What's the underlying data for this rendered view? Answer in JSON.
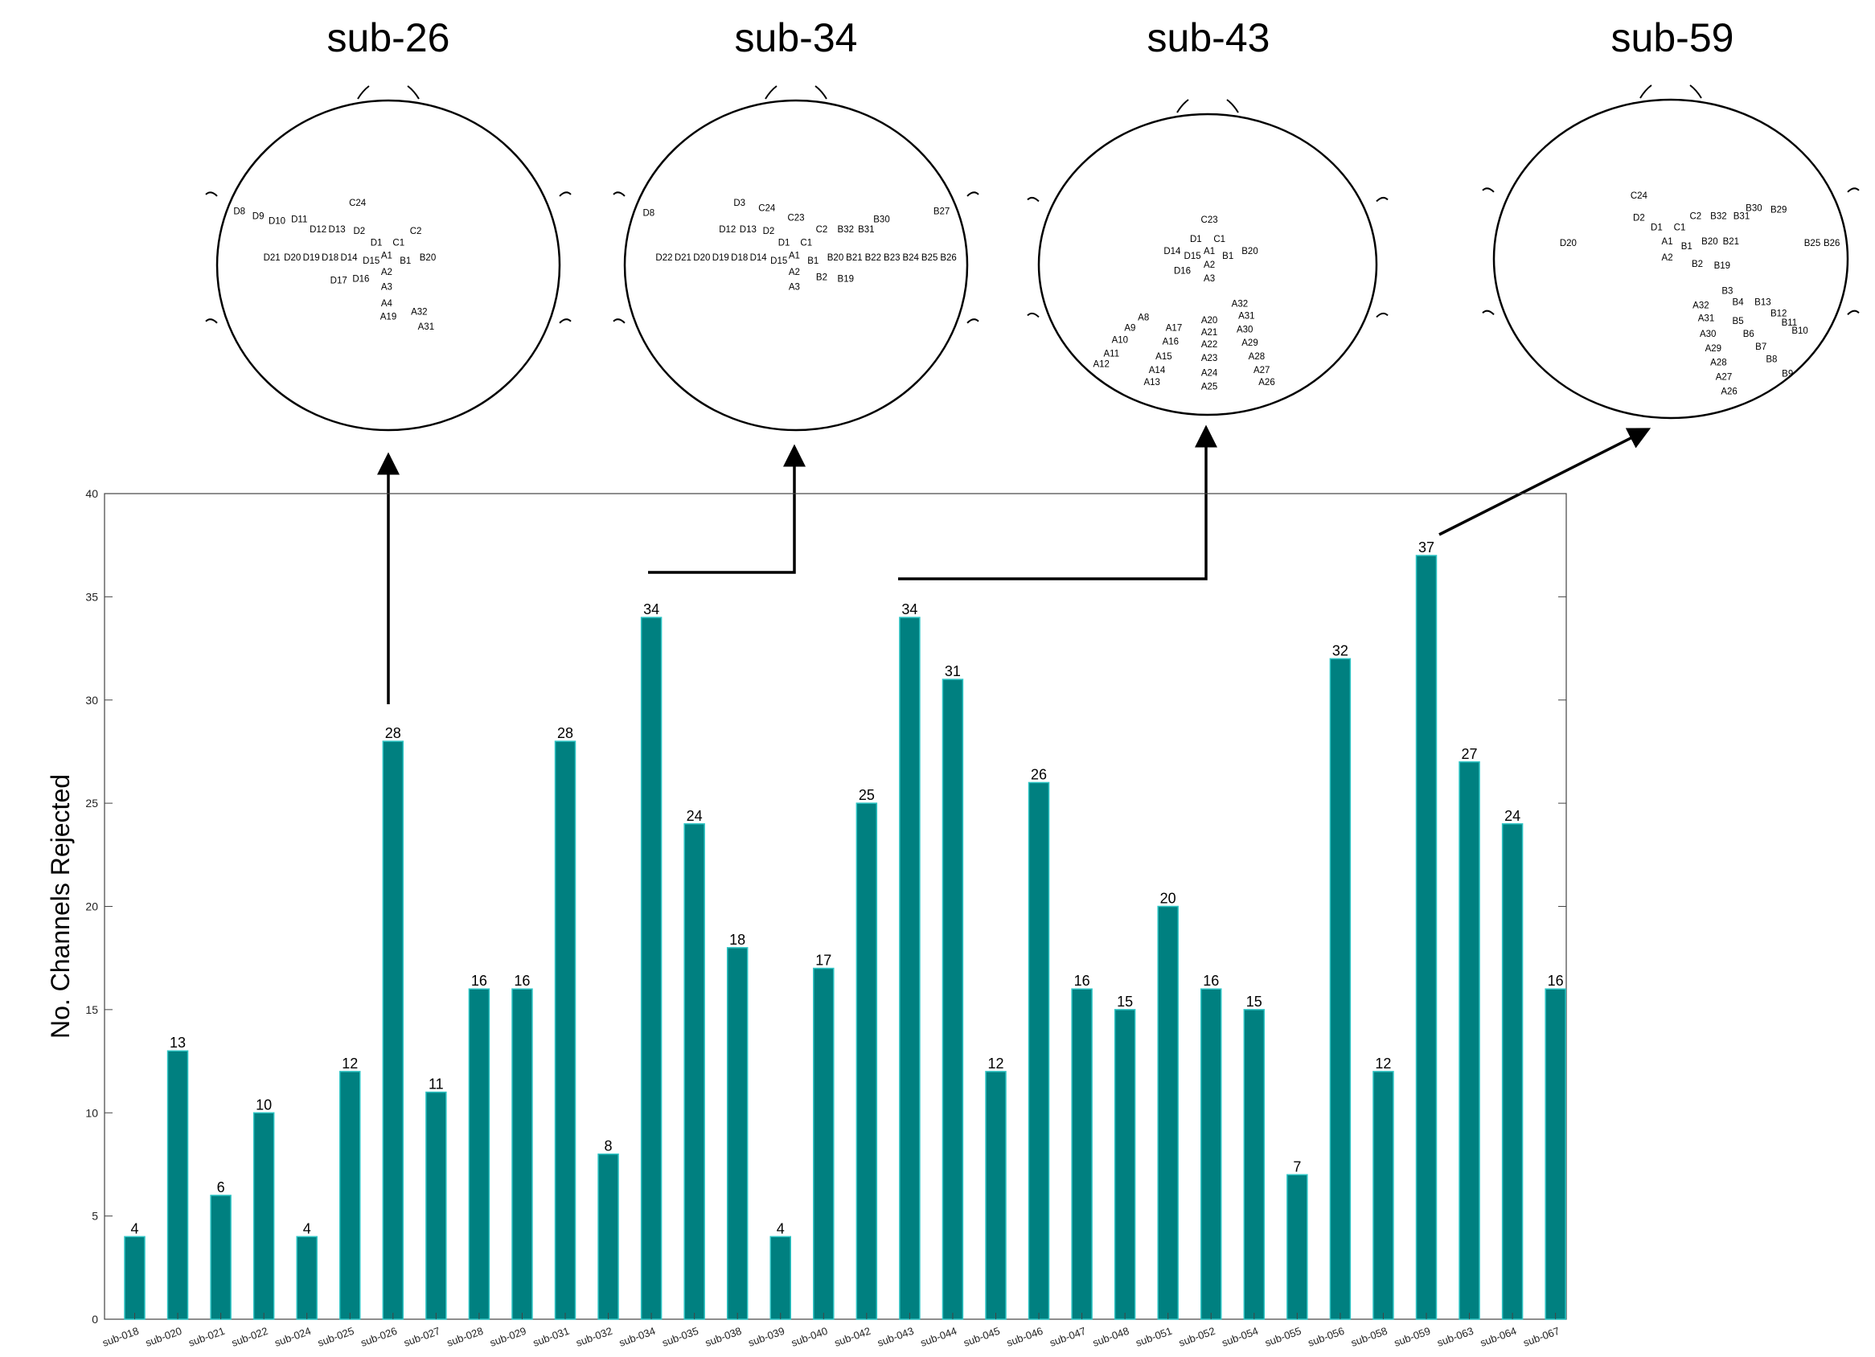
{
  "chart_data": {
    "type": "bar",
    "ylabel": "No. Channels Rejected",
    "xlabel": "",
    "ylim": [
      0,
      40
    ],
    "yticks": [
      0,
      5,
      10,
      15,
      20,
      25,
      30,
      35,
      40
    ],
    "grid": false,
    "categories": [
      "sub-018",
      "sub-020",
      "sub-021",
      "sub-022",
      "sub-024",
      "sub-025",
      "sub-026",
      "sub-027",
      "sub-028",
      "sub-029",
      "sub-031",
      "sub-032",
      "sub-034",
      "sub-035",
      "sub-038",
      "sub-039",
      "sub-040",
      "sub-042",
      "sub-043",
      "sub-044",
      "sub-045",
      "sub-046",
      "sub-047",
      "sub-048",
      "sub-051",
      "sub-052",
      "sub-054",
      "sub-055",
      "sub-056",
      "sub-058",
      "sub-059",
      "sub-063",
      "sub-064",
      "sub-067"
    ],
    "values": [
      4,
      13,
      6,
      10,
      4,
      12,
      28,
      11,
      16,
      16,
      28,
      8,
      34,
      24,
      18,
      4,
      17,
      25,
      34,
      31,
      12,
      26,
      16,
      15,
      20,
      16,
      15,
      7,
      32,
      12,
      37,
      27,
      24,
      16
    ],
    "bar_color": "#008080",
    "bar_edge_color": "#2ec4c4"
  },
  "topoplots": [
    {
      "title": "sub-26",
      "channels": [
        {
          "label": "D8",
          "u": -0.87,
          "v": -0.33
        },
        {
          "label": "D9",
          "u": -0.76,
          "v": -0.3
        },
        {
          "label": "D10",
          "u": -0.65,
          "v": -0.27
        },
        {
          "label": "D11",
          "u": -0.52,
          "v": -0.28
        },
        {
          "label": "D12",
          "u": -0.41,
          "v": -0.22
        },
        {
          "label": "D13",
          "u": -0.3,
          "v": -0.22
        },
        {
          "label": "D2",
          "u": -0.17,
          "v": -0.21
        },
        {
          "label": "C24",
          "u": -0.18,
          "v": -0.38
        },
        {
          "label": "C1",
          "u": 0.06,
          "v": -0.14
        },
        {
          "label": "C2",
          "u": 0.16,
          "v": -0.21
        },
        {
          "label": "D1",
          "u": -0.07,
          "v": -0.14
        },
        {
          "label": "D21",
          "u": -0.68,
          "v": -0.05
        },
        {
          "label": "D20",
          "u": -0.56,
          "v": -0.05
        },
        {
          "label": "D19",
          "u": -0.45,
          "v": -0.05
        },
        {
          "label": "D18",
          "u": -0.34,
          "v": -0.05
        },
        {
          "label": "D14",
          "u": -0.23,
          "v": -0.05
        },
        {
          "label": "D15",
          "u": -0.1,
          "v": -0.03
        },
        {
          "label": "A1",
          "u": -0.01,
          "v": -0.06
        },
        {
          "label": "B1",
          "u": 0.1,
          "v": -0.03
        },
        {
          "label": "B20",
          "u": 0.23,
          "v": -0.05
        },
        {
          "label": "A2",
          "u": -0.01,
          "v": 0.04
        },
        {
          "label": "D16",
          "u": -0.16,
          "v": 0.08
        },
        {
          "label": "D17",
          "u": -0.29,
          "v": 0.09
        },
        {
          "label": "A3",
          "u": -0.01,
          "v": 0.13
        },
        {
          "label": "A4",
          "u": -0.01,
          "v": 0.23
        },
        {
          "label": "A32",
          "u": 0.18,
          "v": 0.28
        },
        {
          "label": "A19",
          "u": 0.0,
          "v": 0.31
        },
        {
          "label": "A31",
          "u": 0.22,
          "v": 0.37
        }
      ]
    },
    {
      "title": "sub-34",
      "channels": [
        {
          "label": "D8",
          "u": -0.86,
          "v": -0.32
        },
        {
          "label": "D3",
          "u": -0.33,
          "v": -0.38
        },
        {
          "label": "C24",
          "u": -0.17,
          "v": -0.35
        },
        {
          "label": "C23",
          "u": 0.0,
          "v": -0.29
        },
        {
          "label": "B27",
          "u": 0.85,
          "v": -0.33
        },
        {
          "label": "B30",
          "u": 0.5,
          "v": -0.28
        },
        {
          "label": "B32",
          "u": 0.29,
          "v": -0.22
        },
        {
          "label": "B31",
          "u": 0.41,
          "v": -0.22
        },
        {
          "label": "C2",
          "u": 0.15,
          "v": -0.22
        },
        {
          "label": "D12",
          "u": -0.4,
          "v": -0.22
        },
        {
          "label": "D13",
          "u": -0.28,
          "v": -0.22
        },
        {
          "label": "D2",
          "u": -0.16,
          "v": -0.21
        },
        {
          "label": "D1",
          "u": -0.07,
          "v": -0.14
        },
        {
          "label": "C1",
          "u": 0.06,
          "v": -0.14
        },
        {
          "label": "D22",
          "u": -0.77,
          "v": -0.05
        },
        {
          "label": "D21",
          "u": -0.66,
          "v": -0.05
        },
        {
          "label": "D20",
          "u": -0.55,
          "v": -0.05
        },
        {
          "label": "D19",
          "u": -0.44,
          "v": -0.05
        },
        {
          "label": "D18",
          "u": -0.33,
          "v": -0.05
        },
        {
          "label": "D14",
          "u": -0.22,
          "v": -0.05
        },
        {
          "label": "D15",
          "u": -0.1,
          "v": -0.03
        },
        {
          "label": "A1",
          "u": -0.01,
          "v": -0.06
        },
        {
          "label": "B1",
          "u": 0.1,
          "v": -0.03
        },
        {
          "label": "B20",
          "u": 0.23,
          "v": -0.05
        },
        {
          "label": "B21",
          "u": 0.34,
          "v": -0.05
        },
        {
          "label": "B22",
          "u": 0.45,
          "v": -0.05
        },
        {
          "label": "B23",
          "u": 0.56,
          "v": -0.05
        },
        {
          "label": "B24",
          "u": 0.67,
          "v": -0.05
        },
        {
          "label": "B25",
          "u": 0.78,
          "v": -0.05
        },
        {
          "label": "B26",
          "u": 0.89,
          "v": -0.05
        },
        {
          "label": "A2",
          "u": -0.01,
          "v": 0.04
        },
        {
          "label": "B2",
          "u": 0.15,
          "v": 0.07
        },
        {
          "label": "B19",
          "u": 0.29,
          "v": 0.08
        },
        {
          "label": "A3",
          "u": -0.01,
          "v": 0.13
        }
      ]
    },
    {
      "title": "sub-43",
      "channels": [
        {
          "label": "C23",
          "u": 0.01,
          "v": -0.3
        },
        {
          "label": "D1",
          "u": -0.07,
          "v": -0.17
        },
        {
          "label": "C1",
          "u": 0.07,
          "v": -0.17
        },
        {
          "label": "D14",
          "u": -0.21,
          "v": -0.09
        },
        {
          "label": "D15",
          "u": -0.09,
          "v": -0.06
        },
        {
          "label": "A1",
          "u": 0.01,
          "v": -0.09
        },
        {
          "label": "B1",
          "u": 0.12,
          "v": -0.06
        },
        {
          "label": "B20",
          "u": 0.25,
          "v": -0.09
        },
        {
          "label": "A2",
          "u": 0.01,
          "v": 0.0
        },
        {
          "label": "D16",
          "u": -0.15,
          "v": 0.04
        },
        {
          "label": "A3",
          "u": 0.01,
          "v": 0.09
        },
        {
          "label": "A32",
          "u": 0.19,
          "v": 0.26
        },
        {
          "label": "A31",
          "u": 0.23,
          "v": 0.34
        },
        {
          "label": "A8",
          "u": -0.38,
          "v": 0.35
        },
        {
          "label": "A20",
          "u": 0.01,
          "v": 0.37
        },
        {
          "label": "A9",
          "u": -0.46,
          "v": 0.42
        },
        {
          "label": "A17",
          "u": -0.2,
          "v": 0.42
        },
        {
          "label": "A21",
          "u": 0.01,
          "v": 0.45
        },
        {
          "label": "A30",
          "u": 0.22,
          "v": 0.43
        },
        {
          "label": "A10",
          "u": -0.52,
          "v": 0.5
        },
        {
          "label": "A16",
          "u": -0.22,
          "v": 0.51
        },
        {
          "label": "A29",
          "u": 0.25,
          "v": 0.52
        },
        {
          "label": "A22",
          "u": 0.01,
          "v": 0.53
        },
        {
          "label": "A11",
          "u": -0.57,
          "v": 0.59
        },
        {
          "label": "A15",
          "u": -0.26,
          "v": 0.61
        },
        {
          "label": "A28",
          "u": 0.29,
          "v": 0.61
        },
        {
          "label": "A23",
          "u": 0.01,
          "v": 0.62
        },
        {
          "label": "A12",
          "u": -0.63,
          "v": 0.66
        },
        {
          "label": "A14",
          "u": -0.3,
          "v": 0.7
        },
        {
          "label": "A27",
          "u": 0.32,
          "v": 0.7
        },
        {
          "label": "A24",
          "u": 0.01,
          "v": 0.72
        },
        {
          "label": "A13",
          "u": -0.33,
          "v": 0.78
        },
        {
          "label": "A26",
          "u": 0.35,
          "v": 0.78
        },
        {
          "label": "A25",
          "u": 0.01,
          "v": 0.81
        }
      ]
    },
    {
      "title": "sub-59",
      "channels": [
        {
          "label": "C24",
          "u": -0.18,
          "v": -0.4
        },
        {
          "label": "B30",
          "u": 0.47,
          "v": -0.32
        },
        {
          "label": "B29",
          "u": 0.61,
          "v": -0.31
        },
        {
          "label": "D2",
          "u": -0.18,
          "v": -0.26
        },
        {
          "label": "C2",
          "u": 0.14,
          "v": -0.27
        },
        {
          "label": "B32",
          "u": 0.27,
          "v": -0.27
        },
        {
          "label": "B31",
          "u": 0.4,
          "v": -0.27
        },
        {
          "label": "D1",
          "u": -0.08,
          "v": -0.2
        },
        {
          "label": "C1",
          "u": 0.05,
          "v": -0.2
        },
        {
          "label": "D20",
          "u": -0.58,
          "v": -0.1
        },
        {
          "label": "A1",
          "u": -0.02,
          "v": -0.11
        },
        {
          "label": "B1",
          "u": 0.09,
          "v": -0.08
        },
        {
          "label": "B20",
          "u": 0.22,
          "v": -0.11
        },
        {
          "label": "B21",
          "u": 0.34,
          "v": -0.11
        },
        {
          "label": "B25",
          "u": 0.8,
          "v": -0.1
        },
        {
          "label": "B26",
          "u": 0.91,
          "v": -0.1
        },
        {
          "label": "A2",
          "u": -0.02,
          "v": -0.01
        },
        {
          "label": "B2",
          "u": 0.15,
          "v": 0.03
        },
        {
          "label": "B19",
          "u": 0.29,
          "v": 0.04
        },
        {
          "label": "B3",
          "u": 0.32,
          "v": 0.2
        },
        {
          "label": "B4",
          "u": 0.38,
          "v": 0.27
        },
        {
          "label": "B13",
          "u": 0.52,
          "v": 0.27
        },
        {
          "label": "A32",
          "u": 0.17,
          "v": 0.29
        },
        {
          "label": "B12",
          "u": 0.61,
          "v": 0.34
        },
        {
          "label": "A31",
          "u": 0.2,
          "v": 0.37
        },
        {
          "label": "B5",
          "u": 0.38,
          "v": 0.39
        },
        {
          "label": "B11",
          "u": 0.67,
          "v": 0.4
        },
        {
          "label": "B10",
          "u": 0.73,
          "v": 0.45
        },
        {
          "label": "A30",
          "u": 0.21,
          "v": 0.47
        },
        {
          "label": "B6",
          "u": 0.44,
          "v": 0.47
        },
        {
          "label": "B7",
          "u": 0.51,
          "v": 0.55
        },
        {
          "label": "A29",
          "u": 0.24,
          "v": 0.56
        },
        {
          "label": "B8",
          "u": 0.57,
          "v": 0.63
        },
        {
          "label": "A28",
          "u": 0.27,
          "v": 0.65
        },
        {
          "label": "B9",
          "u": 0.66,
          "v": 0.72
        },
        {
          "label": "A27",
          "u": 0.3,
          "v": 0.74
        },
        {
          "label": "A26",
          "u": 0.33,
          "v": 0.83
        }
      ]
    }
  ]
}
